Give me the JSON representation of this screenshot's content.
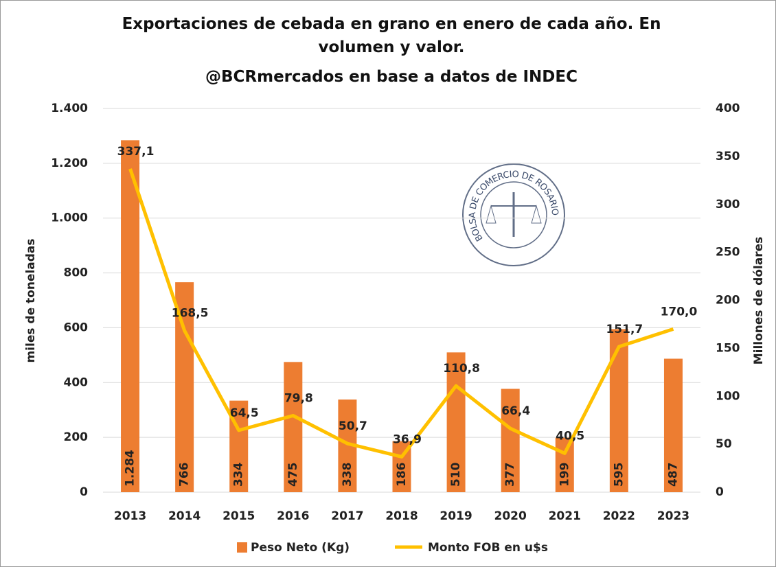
{
  "chart_data": {
    "type": "bar",
    "title": "Exportaciones de cebada en grano en enero de cada año. En volumen y valor.",
    "subtitle": "@BCRmercados en base a datos de INDEC",
    "watermark": "BOLSA DE COMERCIO DE ROSARIO",
    "y_label": "miles de toneladas",
    "y2_label": "Millones de dólares",
    "categories": [
      "2013",
      "2014",
      "2015",
      "2016",
      "2017",
      "2018",
      "2019",
      "2020",
      "2021",
      "2022",
      "2023"
    ],
    "series": [
      {
        "name": "Peso Neto (Kg)",
        "type": "bar",
        "color": "#ed7d31",
        "values": [
          1284,
          766,
          334,
          475,
          338,
          186,
          510,
          377,
          199,
          595,
          487
        ],
        "value_labels": [
          "1.284",
          "766",
          "334",
          "475",
          "338",
          "186",
          "510",
          "377",
          "199",
          "595",
          "487"
        ]
      },
      {
        "name": "Monto FOB en u$s",
        "type": "line",
        "axis": "y2",
        "color": "#ffc000",
        "values": [
          337.1,
          168.5,
          64.5,
          79.8,
          50.7,
          36.9,
          110.8,
          66.4,
          40.5,
          151.7,
          170.0
        ],
        "value_labels": [
          "337,1",
          "168,5",
          "64,5",
          "79,8",
          "50,7",
          "36,9",
          "110,8",
          "66,4",
          "40,5",
          "151,7",
          "170,0"
        ]
      }
    ],
    "ylim": [
      0,
      1400
    ],
    "yticks": [
      0,
      200,
      400,
      600,
      800,
      {
        "value": 1000,
        "label": "1.000"
      },
      {
        "value": 1200,
        "label": "1.200"
      },
      {
        "value": 1400,
        "label": "1.400"
      }
    ],
    "y2lim": [
      0,
      400
    ],
    "y2ticks": [
      0,
      50,
      100,
      150,
      200,
      250,
      300,
      350,
      400
    ],
    "grid": true,
    "legend": "bottom"
  }
}
